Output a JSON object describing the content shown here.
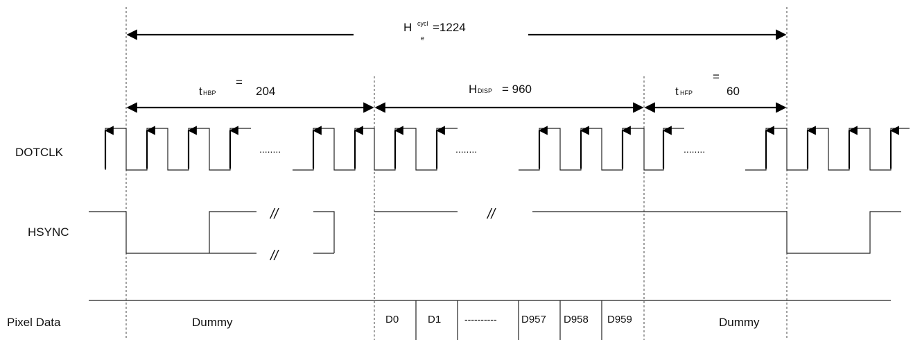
{
  "top": {
    "h_cycle": {
      "prefix": "H",
      "sub_top": "cycl",
      "sub_bottom": "e",
      "value": "=1224"
    }
  },
  "segments": {
    "hbp": {
      "t": "t",
      "sub": "HBP",
      "eq": "=",
      "value": "204"
    },
    "hdisp": {
      "h": "H",
      "sub": "DISP",
      "text": "= 960"
    },
    "hfp": {
      "t": "t",
      "sub": "HFP",
      "eq": "=",
      "value": "60"
    }
  },
  "signals": {
    "dotclk": "DOTCLK",
    "hsync": "HSYNC",
    "pixel_data": "Pixel Data",
    "continuation": "........",
    "break_mark": "//"
  },
  "pixel_cells": {
    "dummy_left": "Dummy",
    "d0": "D0",
    "d1": "D1",
    "dots": "----------",
    "d957": "D957",
    "d958": "D958",
    "d959": "D959",
    "dummy_right": "Dummy"
  }
}
